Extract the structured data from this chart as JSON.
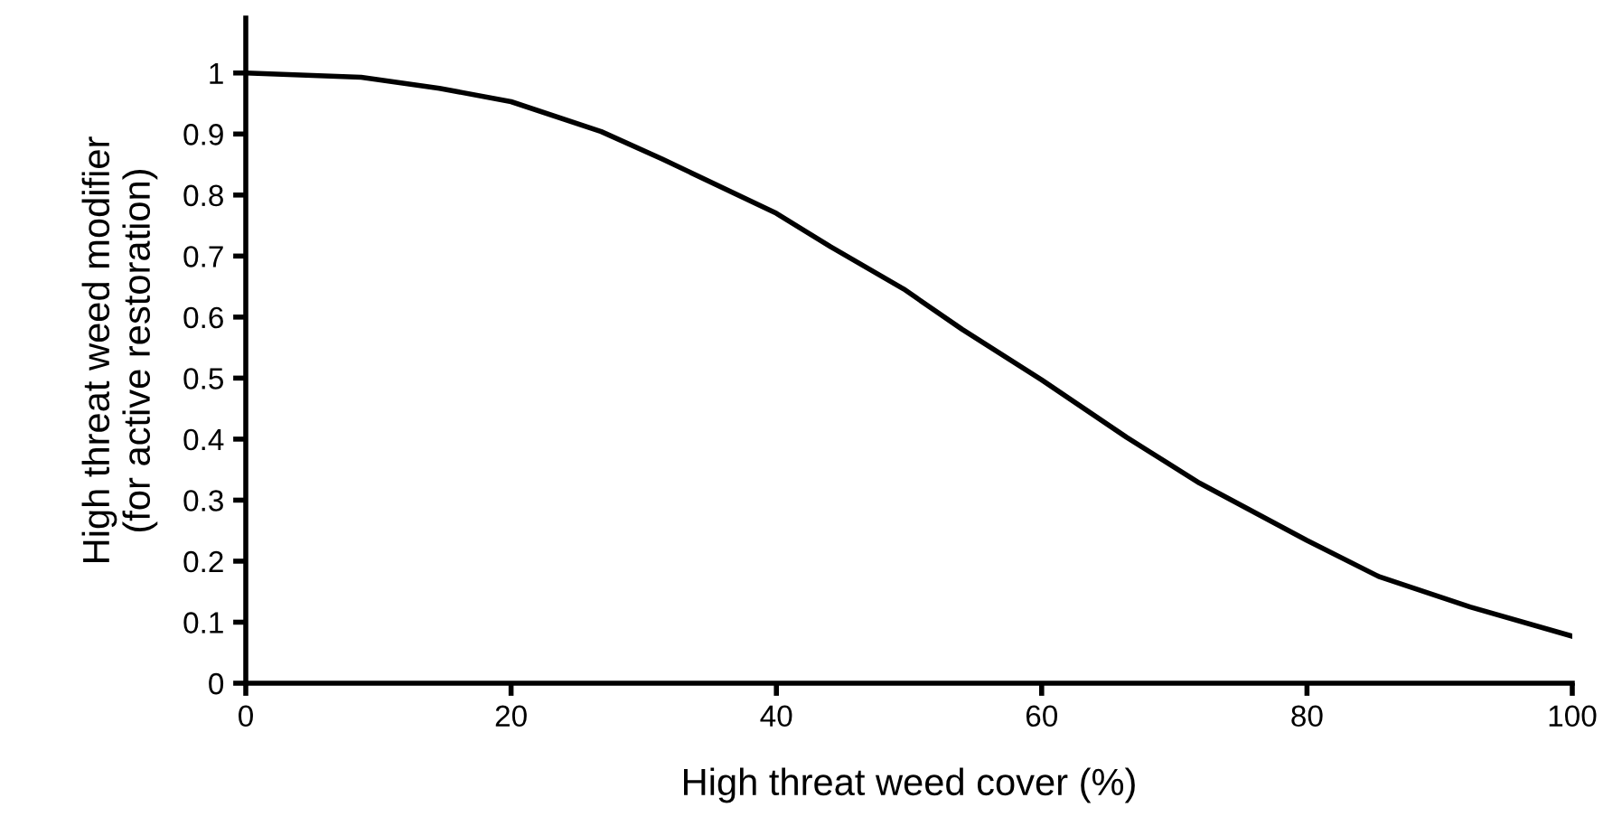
{
  "chart_data": {
    "type": "line",
    "xlabel": "High threat weed cover (%)",
    "ylabel": "High threat weed modifier\n(for active restoration)",
    "series": [
      {
        "color": "#000000",
        "x": [
          0,
          8.7,
          14.6,
          20,
          26.8,
          31.4,
          40,
          44.1,
          49.6,
          54,
          60,
          66.4,
          71.9,
          80,
          85.4,
          92.3,
          100
        ],
        "values": [
          1,
          0.993,
          0.975,
          0.953,
          0.904,
          0.859,
          0.77,
          0.715,
          0.646,
          0.58,
          0.497,
          0.403,
          0.328,
          0.234,
          0.175,
          0.125,
          0.077
        ]
      }
    ],
    "xlim": [
      0,
      100
    ],
    "xticks": [
      0,
      20,
      40,
      60,
      80,
      100
    ],
    "ylim": [
      0,
      1.09
    ],
    "yticks": [
      0,
      0.1,
      0.2,
      0.3,
      0.4,
      0.5,
      0.6,
      0.7,
      0.8,
      0.9,
      1
    ],
    "grid": false,
    "marker": "none",
    "line_style": "solid"
  }
}
